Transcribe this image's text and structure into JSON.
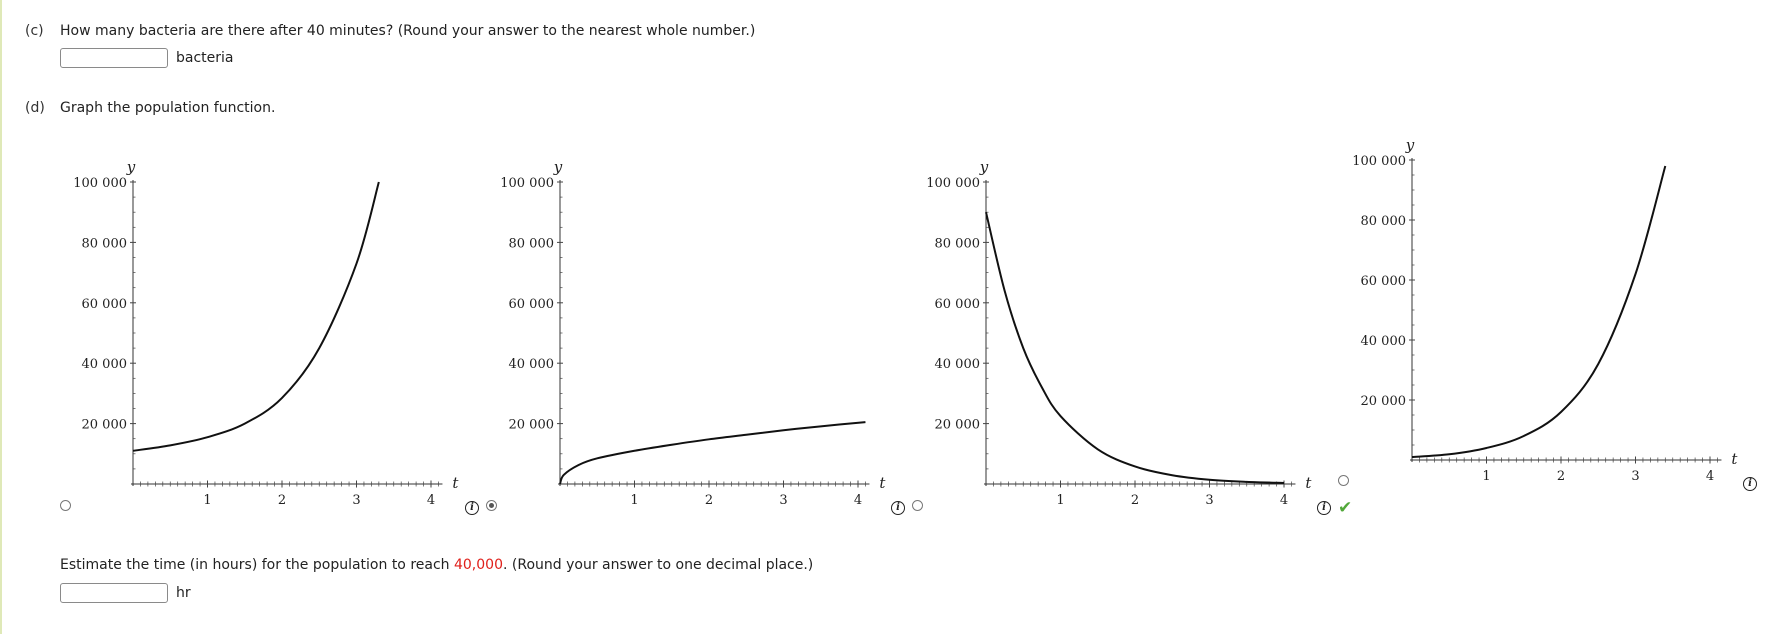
{
  "part_c": {
    "letter": "(c)",
    "question": "How many bacteria are there after 40 minutes? (Round your answer to the nearest whole number.)",
    "answer_value": "",
    "unit": "bacteria"
  },
  "part_d": {
    "letter": "(d)",
    "question": "Graph the population function."
  },
  "estimate": {
    "prefix": "Estimate the time (in hours) for the population to reach ",
    "highlight": "40,000",
    "suffix": ". (Round your answer to one decimal place.)",
    "answer_value": "",
    "unit": "hr",
    "highlight_color": "#e0201b"
  },
  "info_glyph": "i",
  "check_glyph": "✔",
  "check_color": "#52a83a",
  "chart_data": [
    {
      "type": "line",
      "xlabel": "t",
      "ylabel": "y",
      "xlim": [
        0,
        4.1
      ],
      "ylim": [
        0,
        100000
      ],
      "xticks": [
        "1",
        "2",
        "3",
        "4"
      ],
      "yticks": [
        "20 000",
        "40 000",
        "60 000",
        "80 000",
        "100 000"
      ],
      "grid": false,
      "x": [
        0,
        0.5,
        1,
        1.5,
        2,
        2.5,
        3,
        3.3
      ],
      "y": [
        11000,
        12800,
        15500,
        20000,
        28500,
        45000,
        73000,
        100000
      ],
      "selected": false
    },
    {
      "type": "line",
      "xlabel": "t",
      "ylabel": "y",
      "xlim": [
        0,
        4.1
      ],
      "ylim": [
        0,
        100000
      ],
      "xticks": [
        "1",
        "2",
        "3",
        "4"
      ],
      "yticks": [
        "20 000",
        "40 000",
        "60 000",
        "80 000",
        "100 000"
      ],
      "grid": false,
      "x": [
        0,
        0.05,
        0.25,
        0.5,
        1,
        1.5,
        2,
        2.5,
        3,
        3.5,
        4.1
      ],
      "y": [
        0,
        3000,
        6300,
        8500,
        11000,
        13000,
        14800,
        16300,
        17800,
        19100,
        20500
      ],
      "selected": true
    },
    {
      "type": "line",
      "xlabel": "t",
      "ylabel": "y",
      "xlim": [
        0,
        4.1
      ],
      "ylim": [
        0,
        100000
      ],
      "xticks": [
        "1",
        "2",
        "3",
        "4"
      ],
      "yticks": [
        "20 000",
        "40 000",
        "60 000",
        "80 000",
        "100 000"
      ],
      "grid": false,
      "x": [
        0,
        0.25,
        0.5,
        0.75,
        1,
        1.5,
        2,
        2.5,
        3,
        3.5,
        4
      ],
      "y": [
        90000,
        64000,
        45000,
        32000,
        22500,
        11500,
        5800,
        2900,
        1400,
        700,
        350
      ],
      "selected": false
    },
    {
      "type": "line",
      "xlabel": "t",
      "ylabel": "y",
      "xlim": [
        0,
        4.1
      ],
      "ylim": [
        0,
        100000
      ],
      "xticks": [
        "1",
        "2",
        "3",
        "4"
      ],
      "yticks": [
        "20 000",
        "40 000",
        "60 000",
        "80 000",
        "100 000"
      ],
      "grid": false,
      "x": [
        0,
        0.5,
        1,
        1.5,
        2,
        2.5,
        3,
        3.4
      ],
      "y": [
        1000,
        1900,
        4000,
        8000,
        16000,
        32000,
        62000,
        98000
      ],
      "selected": false,
      "marked_correct": true
    }
  ]
}
